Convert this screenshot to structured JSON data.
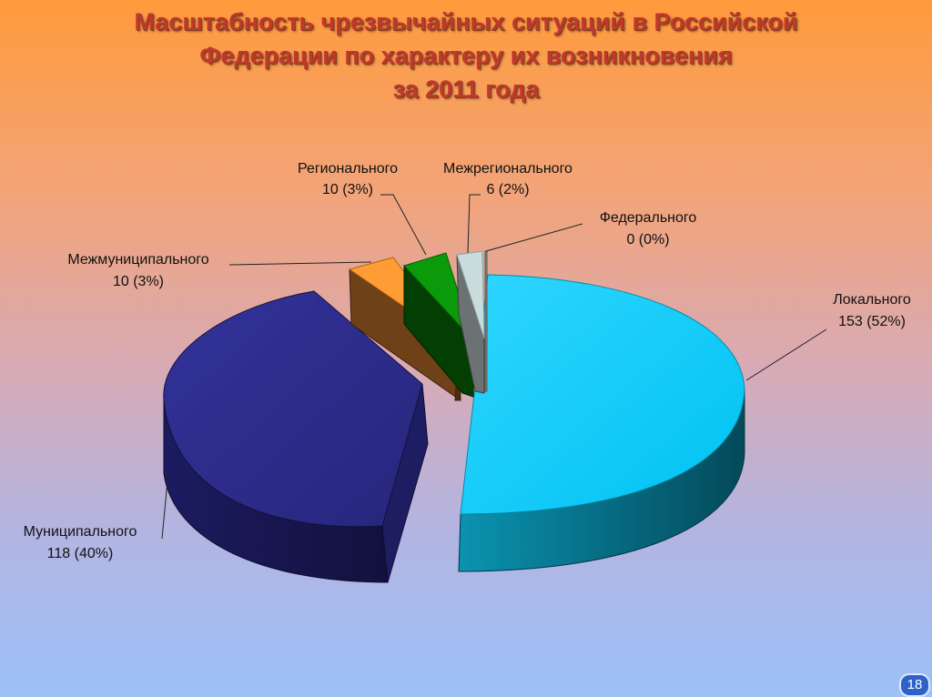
{
  "title_lines": [
    "Масштабность чрезвычайных ситуаций в Российской",
    "Федерации по характеру их возникновения",
    "за 2011 года"
  ],
  "page_number": "18",
  "chart_data": {
    "type": "pie",
    "title": "Масштабность чрезвычайных ситуаций в Российской Федерации по характеру их возникновения за 2011 года",
    "slices": [
      {
        "name": "Локального",
        "value": 153,
        "percent": "52%",
        "label": "153 (52%)",
        "color": "#00ccff"
      },
      {
        "name": "Муниципального",
        "value": 118,
        "percent": "40%",
        "label": "118 (40%)",
        "color": "#2c2b88"
      },
      {
        "name": "Межмуниципального",
        "value": 10,
        "percent": "3%",
        "label": "10 (3%)",
        "color": "#ff9c33"
      },
      {
        "name": "Регионального",
        "value": 10,
        "percent": "3%",
        "label": "10 (3%)",
        "color": "#0a9a0a"
      },
      {
        "name": "Межрегионального",
        "value": 6,
        "percent": "2%",
        "label": "6 (2%)",
        "color": "#c8dcdc"
      },
      {
        "name": "Федерального",
        "value": 0,
        "percent": "0%",
        "label": "0 (0%)",
        "color": "#888888"
      }
    ]
  }
}
